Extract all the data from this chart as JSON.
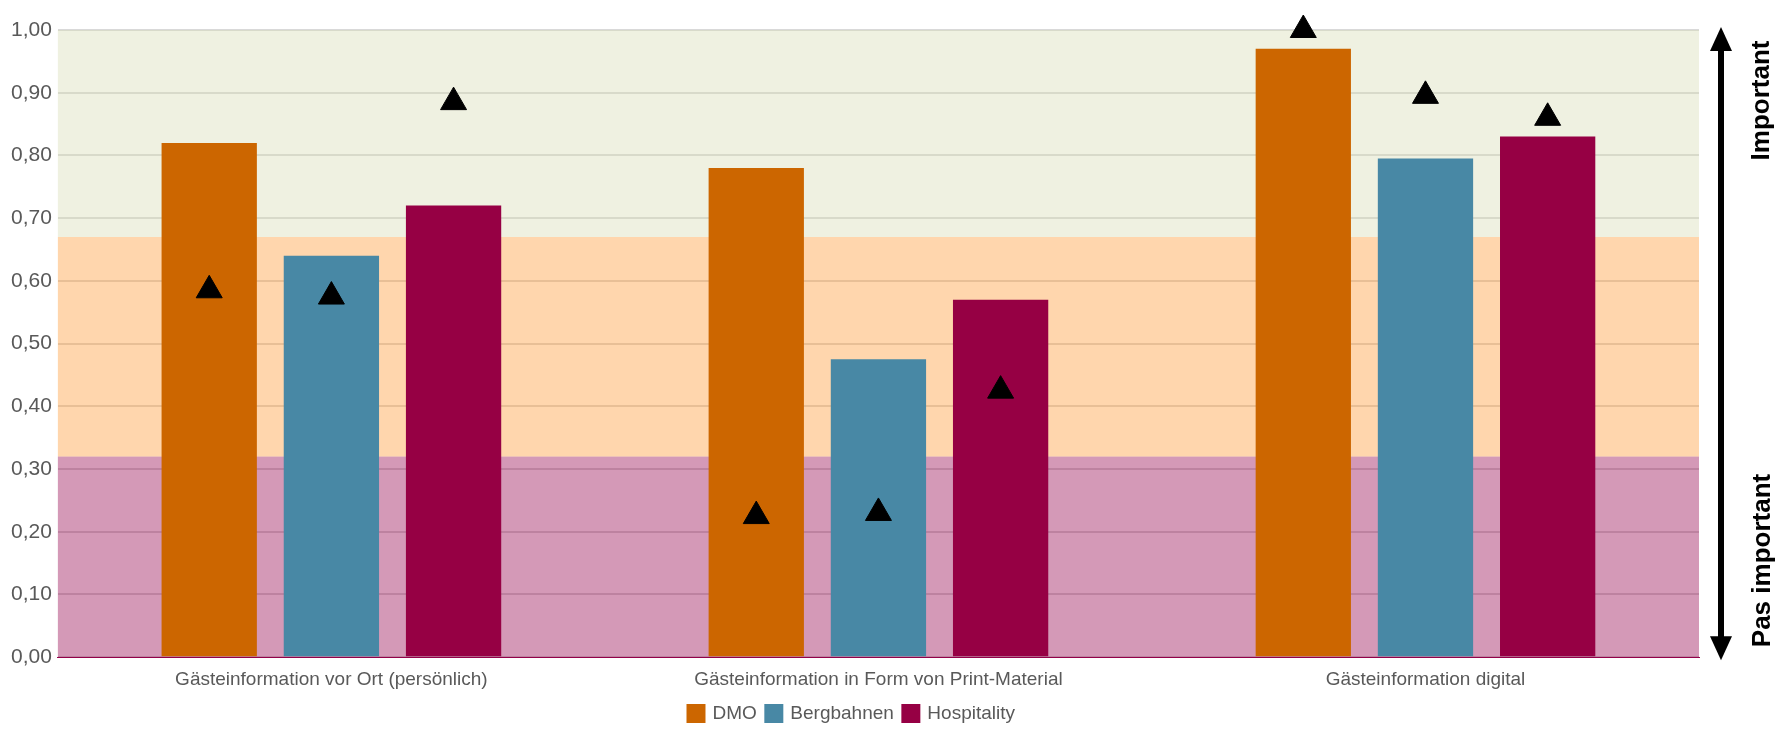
{
  "chart_data": {
    "type": "bar",
    "categories": [
      "Gästeinformation vor Ort (persönlich)",
      "Gästeinformation in Form von Print-Material",
      "Gästeinformation digital"
    ],
    "series": [
      {
        "name": "DMO",
        "color": "#cc6600",
        "values": [
          0.82,
          0.78,
          0.97
        ]
      },
      {
        "name": "Bergbahnen",
        "color": "#4888a5",
        "values": [
          0.64,
          0.475,
          0.795
        ]
      },
      {
        "name": "Hospitality",
        "color": "#960044",
        "values": [
          0.72,
          0.57,
          0.83
        ]
      },
      {
        "type": "scatter",
        "color": "#000000",
        "x": [
          "Gästeinformation vor Ort (persönlich)",
          "Gästeinformation in Form von Print-Material",
          "Gästeinformation digital"
        ],
        "values": [
          0.585,
          0.225,
          1.0
        ]
      },
      {
        "type": "scatter",
        "color": "#000000",
        "x": [
          "Gästeinformation vor Ort (persönlich)",
          "Gästeinformation in Form von Print-Material",
          "Gästeinformation digital"
        ],
        "values": [
          0.575,
          0.23,
          0.895
        ]
      },
      {
        "type": "scatter",
        "color": "#000000",
        "x": [
          "Gästeinformation vor Ort (persönlich)",
          "Gästeinformation in Form von Print-Material",
          "Gästeinformation digital"
        ],
        "values": [
          0.885,
          0.425,
          0.86
        ]
      }
    ],
    "marker": "triangle",
    "ylim": [
      0,
      1
    ],
    "yticks": [
      {
        "value": 0,
        "label": "0,00"
      },
      {
        "value": 0.1,
        "label": "0,10"
      },
      {
        "value": 0.2,
        "label": "0,20"
      },
      {
        "value": 0.3,
        "label": "0,30"
      },
      {
        "value": 0.4,
        "label": "0,40"
      },
      {
        "value": 0.5,
        "label": "0,50"
      },
      {
        "value": 0.6,
        "label": "0,60"
      },
      {
        "value": 0.7,
        "label": "0,70"
      },
      {
        "value": 0.8,
        "label": "0,80"
      },
      {
        "value": 0.9,
        "label": "0,90"
      },
      {
        "value": 1,
        "label": "1,00"
      }
    ],
    "bands": [
      {
        "axis": "y",
        "from": 0,
        "to": 0.32,
        "color": "#94004a"
      },
      {
        "axis": "y",
        "from": 0.32,
        "to": 0.67,
        "color": "#ff9933"
      },
      {
        "axis": "y",
        "from": 0.67,
        "to": 1,
        "color": "#d6dcb4"
      }
    ],
    "annotations": [
      "Important",
      "Pas important"
    ],
    "grid": "y",
    "legend": "bottom"
  }
}
